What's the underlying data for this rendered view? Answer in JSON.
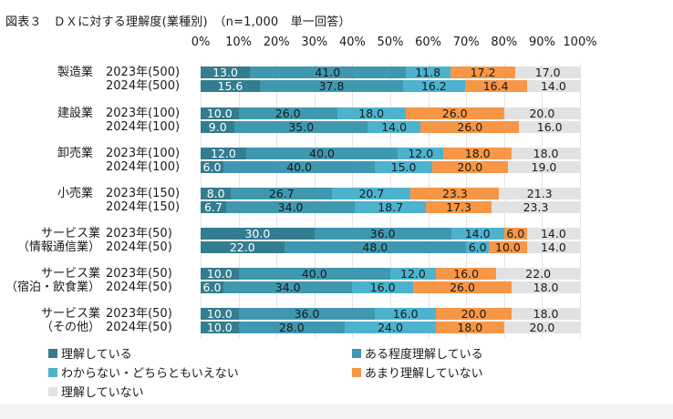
{
  "chart_data": {
    "type": "bar",
    "orientation": "horizontal",
    "stacked": "percent",
    "title": "図表３　ＤＸに対する理解度(業種別)　（n=1,000　単一回答）",
    "xlabel": "",
    "ylabel": "",
    "xlim": [
      0,
      100
    ],
    "x_ticks": [
      "0%",
      "10%",
      "20%",
      "30%",
      "40%",
      "50%",
      "60%",
      "70%",
      "80%",
      "90%",
      "100%"
    ],
    "grid": true,
    "legend_position": "bottom",
    "series": [
      {
        "name": "理解している",
        "color": "#347c8f"
      },
      {
        "name": "ある程度理解している",
        "color": "#3f98b0"
      },
      {
        "name": "わからない・どちらともいえない",
        "color": "#4cb2ce"
      },
      {
        "name": "あまり理解していない",
        "color": "#f79646"
      },
      {
        "name": "理解していない",
        "color": "#e2e2e2"
      }
    ],
    "label_colors": [
      "#ffffff",
      "#1a1a1a",
      "#1a1a1a",
      "#1a1a1a",
      "#1a1a1a"
    ],
    "groups": [
      {
        "category": [
          "製造業"
        ],
        "rows": [
          {
            "label": "2023年(500)",
            "values": [
              13.0,
              41.0,
              11.8,
              17.2,
              17.0
            ]
          },
          {
            "label": "2024年(500)",
            "values": [
              15.6,
              37.8,
              16.2,
              16.4,
              14.0
            ]
          }
        ]
      },
      {
        "category": [
          "建設業"
        ],
        "rows": [
          {
            "label": "2023年(100)",
            "values": [
              10.0,
              26.0,
              18.0,
              26.0,
              20.0
            ]
          },
          {
            "label": "2024年(100)",
            "values": [
              9.0,
              35.0,
              14.0,
              26.0,
              16.0
            ]
          }
        ]
      },
      {
        "category": [
          "卸売業"
        ],
        "rows": [
          {
            "label": "2023年(100)",
            "values": [
              12.0,
              40.0,
              12.0,
              18.0,
              18.0
            ]
          },
          {
            "label": "2024年(100)",
            "values": [
              6.0,
              40.0,
              15.0,
              20.0,
              19.0
            ]
          }
        ]
      },
      {
        "category": [
          "小売業"
        ],
        "rows": [
          {
            "label": "2023年(150)",
            "values": [
              8.0,
              26.7,
              20.7,
              23.3,
              21.3
            ]
          },
          {
            "label": "2024年(150)",
            "values": [
              6.7,
              34.0,
              18.7,
              17.3,
              23.3
            ]
          }
        ]
      },
      {
        "category": [
          "サービス業",
          "（情報通信業）"
        ],
        "rows": [
          {
            "label": "2023年(50)",
            "values": [
              30.0,
              36.0,
              14.0,
              6.0,
              14.0
            ]
          },
          {
            "label": "2024年(50)",
            "values": [
              22.0,
              48.0,
              6.0,
              10.0,
              14.0
            ]
          }
        ]
      },
      {
        "category": [
          "サービス業",
          "（宿泊・飲食業）"
        ],
        "rows": [
          {
            "label": "2023年(50)",
            "values": [
              10.0,
              40.0,
              12.0,
              16.0,
              22.0
            ]
          },
          {
            "label": "2024年(50)",
            "values": [
              6.0,
              34.0,
              16.0,
              26.0,
              18.0
            ]
          }
        ]
      },
      {
        "category": [
          "サービス業",
          "（その他）"
        ],
        "rows": [
          {
            "label": "2023年(50)",
            "values": [
              10.0,
              36.0,
              16.0,
              20.0,
              18.0
            ]
          },
          {
            "label": "2024年(50)",
            "values": [
              10.0,
              28.0,
              24.0,
              18.0,
              20.0
            ]
          }
        ]
      }
    ]
  }
}
